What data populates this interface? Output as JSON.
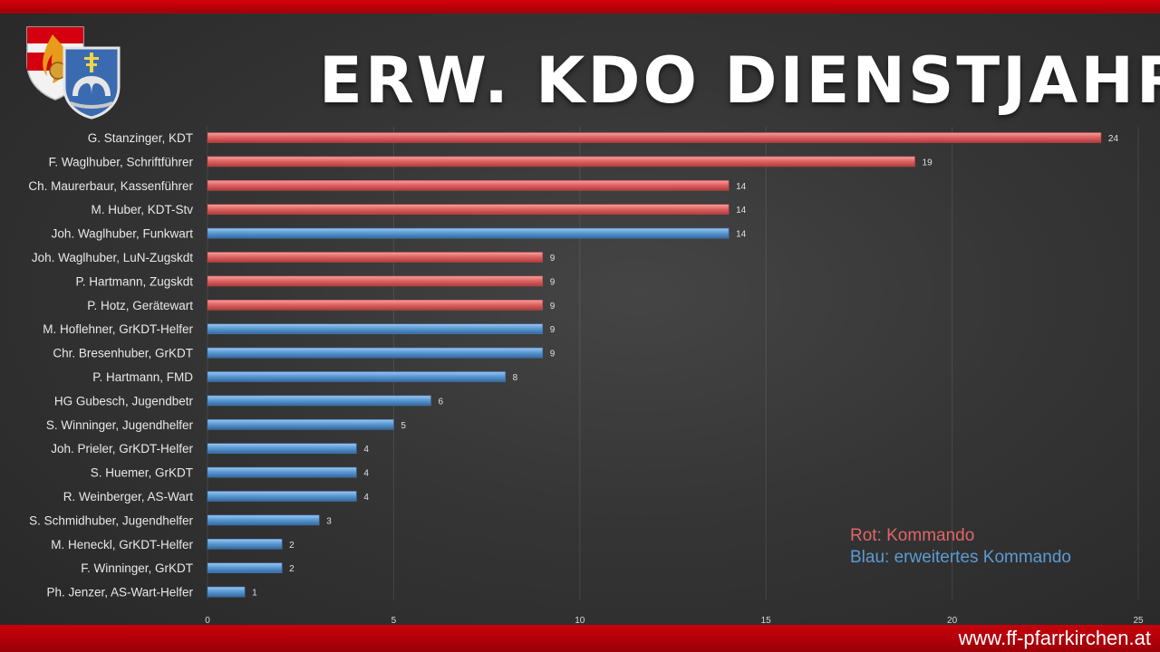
{
  "slide": {
    "title": "ERW. KDO DIENSTJAHRE",
    "footer_url": "www.ff-pfarrkirchen.at"
  },
  "legend": {
    "red_label": "Rot: Kommando",
    "blue_label": "Blau: erweitertes Kommando"
  },
  "colors": {
    "band": "#c8000a",
    "kommando": "#e06666",
    "erweitert": "#5b9bd5"
  },
  "chart_data": {
    "type": "bar",
    "orientation": "horizontal",
    "categories": [
      "G. Stanzinger, KDT",
      "F. Waglhuber, Schriftführer",
      "Ch. Maurerbaur, Kassenführer",
      "M. Huber, KDT-Stv",
      "Joh. Waglhuber, Funkwart",
      "Joh. Waglhuber, LuN-Zugskdt",
      "P. Hartmann, Zugskdt",
      "P. Hotz, Gerätewart",
      "M. Hoflehner, GrKDT-Helfer",
      "Chr. Bresenhuber, GrKDT",
      "P. Hartmann, FMD",
      "HG Gubesch, Jugendbetr",
      "S. Winninger, Jugendhelfer",
      "Joh. Prieler, GrKDT-Helfer",
      "S. Huemer, GrKDT",
      "R. Weinberger, AS-Wart",
      "S. Schmidhuber, Jugendhelfer",
      "M. Heneckl, GrKDT-Helfer",
      "F. Winninger, GrKDT",
      "Ph. Jenzer, AS-Wart-Helfer"
    ],
    "values": [
      24,
      19,
      14,
      14,
      14,
      9,
      9,
      9,
      9,
      9,
      8,
      6,
      5,
      4,
      4,
      4,
      3,
      2,
      2,
      1
    ],
    "groups": [
      "red",
      "red",
      "red",
      "red",
      "blue",
      "red",
      "red",
      "red",
      "blue",
      "blue",
      "blue",
      "blue",
      "blue",
      "blue",
      "blue",
      "blue",
      "blue",
      "blue",
      "blue",
      "blue"
    ],
    "xlim": [
      0,
      25
    ],
    "xticks": [
      0,
      5,
      10,
      15,
      20,
      25
    ],
    "data_labels": true,
    "grid": "vertical"
  }
}
